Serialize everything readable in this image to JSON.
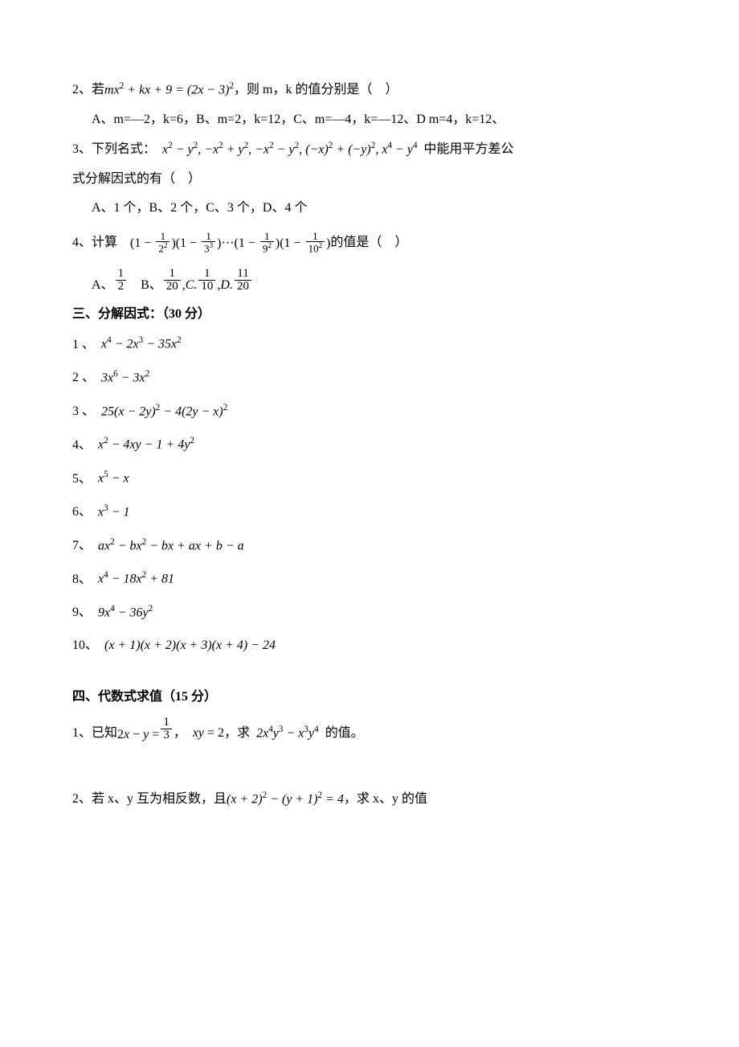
{
  "q2": {
    "num": "2、",
    "prefix": "若",
    "expr": "mx<sup>2</sup> + kx + 9 = (2x − 3)<sup>2</sup>",
    "suffix": "，则 m，k 的值分别是（　）",
    "optA": "A、m=—2，k=6，B、m=2，k=12，C、m=—4，k=—12、D m=4，k=12、"
  },
  "q3": {
    "num": "3、",
    "prefix": "下列名式：",
    "expr": "x<sup>2</sup> − y<sup>2</sup>, −x<sup>2</sup> + y<sup>2</sup>, −x<sup>2</sup> − y<sup>2</sup>, (−x)<sup>2</sup> + (−y)<sup>2</sup>, x<sup>4</sup> − y<sup>4</sup>",
    "suffix1": "中能用平方差公",
    "line2": "式分解因式的有（　）",
    "opt": "A、1 个，B、2 个，C、3 个，D、4 个"
  },
  "q4": {
    "num": "4、",
    "prefix": "计算",
    "suffix": "的值是（　）",
    "optA_label": "A、",
    "optB_label": "B、",
    "frac1_num": "1",
    "frac1_den": "2",
    "frac2_num": "1",
    "frac2_den": "20",
    "frac3_num": "1",
    "frac3_den": "10",
    "frac4_num": "11",
    "frac4_den": "20",
    "c_label": "C.",
    "d_label": "D."
  },
  "sec3": {
    "title": "三、分解因式：（30 分）",
    "items": [
      {
        "n": "1 、",
        "e": "x<sup>4</sup> − 2x<sup>3</sup> − 35x<sup>2</sup>"
      },
      {
        "n": "2 、",
        "e": "3x<sup>6</sup> − 3x<sup>2</sup>"
      },
      {
        "n": "3 、",
        "e": "25(x − 2y)<sup>2</sup> − 4(2y − x)<sup>2</sup>"
      },
      {
        "n": "4、",
        "e": "x<sup>2</sup> − 4xy − 1 + 4y<sup>2</sup>"
      },
      {
        "n": "5、",
        "e": "x<sup>5</sup> − x"
      },
      {
        "n": "6、",
        "e": "x<sup>3</sup> − 1"
      },
      {
        "n": "7、",
        "e": "ax<sup>2</sup> − bx<sup>2</sup> − bx + ax + b − a"
      },
      {
        "n": "8、",
        "e": "x<sup>4</sup> − 18x<sup>2</sup> + 81"
      },
      {
        "n": "9、",
        "e": "9x<sup>4</sup> − 36y<sup>2</sup>"
      },
      {
        "n": "10、",
        "e": "(x + 1)(x + 2)(x + 3)(x + 4) − 24"
      }
    ]
  },
  "sec4": {
    "title": "四、代数式求值（15 分）",
    "q1": {
      "num": "1、",
      "prefix": "已知",
      "eq1_lhs": "2x − y =",
      "eq1_num": "1",
      "eq1_den": "3",
      "mid1": "，",
      "eq2": "xy = 2",
      "mid2": "，求",
      "target": "2x<sup>4</sup>y<sup>3</sup> − x<sup>3</sup>y<sup>4</sup>",
      "suffix": "的值。"
    },
    "q2": {
      "num": "2、",
      "prefix": "若 x、y 互为相反数，且",
      "expr": "(x + 2)<sup>2</sup> − (y + 1)<sup>2</sup> = 4",
      "suffix": "，求 x、y 的值"
    }
  }
}
